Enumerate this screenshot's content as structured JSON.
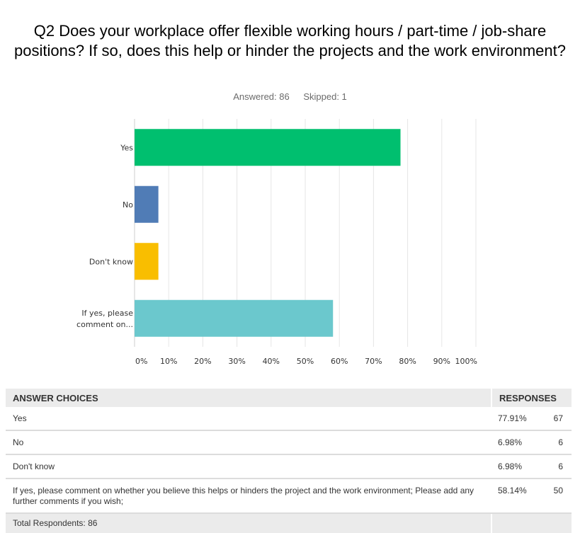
{
  "question": {
    "title": "Q2 Does your workplace offer flexible working hours / part-time / job-share positions? If so, does this help or hinder the projects and the work environment?",
    "answered": "Answered: 86",
    "skipped": "Skipped: 1"
  },
  "chart_data": {
    "type": "bar",
    "orientation": "horizontal",
    "categories": [
      [
        "Yes"
      ],
      [
        "No"
      ],
      [
        "Don't know"
      ],
      [
        "If yes, please",
        "comment on..."
      ]
    ],
    "values": [
      77.91,
      6.98,
      6.98,
      58.14
    ],
    "colors": [
      "#00bf6f",
      "#507cb6",
      "#f9be00",
      "#6bc8cd"
    ],
    "xlim": [
      0,
      100
    ],
    "xticks": [
      0,
      10,
      20,
      30,
      40,
      50,
      60,
      70,
      80,
      90,
      100
    ],
    "xtick_labels": [
      "0%",
      "10%",
      "20%",
      "30%",
      "40%",
      "50%",
      "60%",
      "70%",
      "80%",
      "90%",
      "100%"
    ],
    "grid": true
  },
  "table": {
    "headers": {
      "choices": "ANSWER CHOICES",
      "responses": "RESPONSES"
    },
    "rows": [
      {
        "choice": "Yes",
        "percent": "77.91%",
        "count": "67"
      },
      {
        "choice": "No",
        "percent": "6.98%",
        "count": "6"
      },
      {
        "choice": "Don't know",
        "percent": "6.98%",
        "count": "6"
      },
      {
        "choice": "If yes, please comment on whether you believe this helps or hinders the project and the work environment; Please add any further comments if you wish;",
        "percent": "58.14%",
        "count": "50"
      }
    ],
    "total": "Total Respondents: 86"
  }
}
